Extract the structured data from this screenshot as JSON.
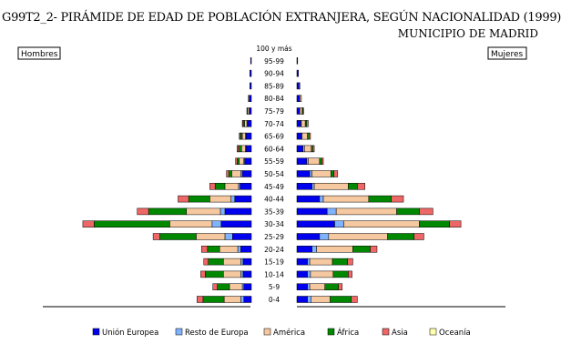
{
  "title": "G99T2_2- PIRÁMIDE DE EDAD DE POBLACIÓN EXTRANJERA, SEGÚN NACIONALIDAD (1999)",
  "subtitle": "MUNICIPIO DE MADRID",
  "left_label": "Hombres",
  "right_label": "Mujeres",
  "colors": {
    "Unión Europea": "#0000ee",
    "Resto de Europa": "#7fb2ff",
    "América": "#f6c8a0",
    "África": "#008800",
    "Asia": "#ee6666",
    "Oceanía": "#ffffb0"
  },
  "chart_data": {
    "type": "bar",
    "orientation": "horizontal-pyramid",
    "title": "G99T2_2- PIRÁMIDE DE EDAD DE POBLACIÓN EXTRANJERA, SEGÚN NACIONALIDAD (1999)",
    "subtitle": "MUNICIPIO DE MADRID",
    "categories": [
      "100 y más",
      "95-99",
      "90-94",
      "85-89",
      "80-84",
      "75-79",
      "70-74",
      "65-69",
      "60-64",
      "55-59",
      "50-54",
      "45-49",
      "40-44",
      "35-39",
      "30-34",
      "25-29",
      "20-24",
      "15-19",
      "10-14",
      "5-9",
      "0-4"
    ],
    "series_order": [
      "Unión Europea",
      "Resto de Europa",
      "América",
      "África",
      "Asia",
      "Oceanía"
    ],
    "men": {
      "Unión Europea": [
        0,
        1,
        2,
        2,
        3,
        3,
        5,
        7,
        7,
        9,
        12,
        15,
        22,
        35,
        40,
        25,
        14,
        11,
        11,
        10,
        10
      ],
      "Resto de Europa": [
        0,
        0,
        0,
        0,
        0,
        0,
        1,
        1,
        1,
        1,
        2,
        2,
        5,
        6,
        12,
        10,
        4,
        3,
        3,
        2,
        4
      ],
      "América": [
        0,
        0,
        0,
        0,
        1,
        2,
        3,
        4,
        5,
        6,
        12,
        18,
        28,
        45,
        56,
        38,
        24,
        23,
        23,
        17,
        22
      ],
      "África": [
        0,
        0,
        0,
        0,
        0,
        1,
        2,
        2,
        3,
        3,
        4,
        13,
        28,
        50,
        100,
        48,
        16,
        20,
        24,
        16,
        28
      ],
      "Asia": [
        0,
        0,
        0,
        0,
        0,
        0,
        1,
        1,
        2,
        2,
        3,
        7,
        14,
        15,
        15,
        9,
        8,
        6,
        6,
        6,
        8
      ],
      "Oceanía": [
        0,
        0,
        0,
        0,
        0,
        0,
        0,
        1,
        1,
        0,
        0,
        0,
        0,
        0,
        0,
        0,
        0,
        0,
        0,
        0,
        0
      ]
    },
    "women": {
      "Unión Europea": [
        0,
        1,
        2,
        3,
        4,
        4,
        5,
        6,
        8,
        13,
        17,
        20,
        30,
        40,
        50,
        30,
        20,
        14,
        14,
        14,
        14
      ],
      "Resto de Europa": [
        0,
        0,
        0,
        0,
        0,
        0,
        1,
        1,
        2,
        2,
        3,
        3,
        5,
        12,
        12,
        12,
        6,
        3,
        4,
        3,
        5
      ],
      "América": [
        0,
        0,
        0,
        1,
        2,
        3,
        5,
        7,
        9,
        15,
        25,
        45,
        60,
        80,
        100,
        78,
        48,
        30,
        30,
        20,
        25
      ],
      "África": [
        0,
        0,
        0,
        0,
        0,
        1,
        2,
        2,
        2,
        3,
        4,
        12,
        30,
        30,
        40,
        35,
        23,
        20,
        20,
        18,
        28
      ],
      "Asia": [
        0,
        0,
        0,
        0,
        0,
        1,
        2,
        2,
        2,
        2,
        5,
        10,
        16,
        18,
        15,
        13,
        9,
        7,
        5,
        5,
        8
      ],
      "Oceanía": [
        0,
        0,
        0,
        0,
        0,
        0,
        0,
        0,
        0,
        0,
        0,
        0,
        0,
        0,
        0,
        0,
        0,
        0,
        0,
        0,
        0
      ]
    }
  }
}
